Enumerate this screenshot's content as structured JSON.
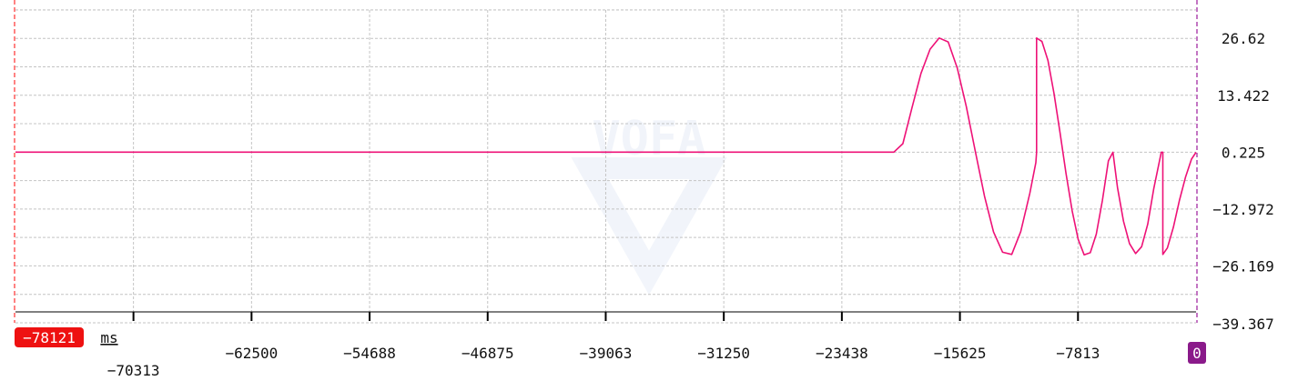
{
  "chart_data": {
    "type": "line",
    "x_unit": "ms",
    "x_range": [
      -78121,
      0
    ],
    "y_range": [
      -39.367,
      33.2
    ],
    "x_ticks": [
      -70313,
      -62500,
      -54688,
      -46875,
      -39063,
      -31250,
      -23438,
      -15625,
      -7813
    ],
    "y_ticks": [
      26.62,
      13.422,
      0.225,
      -12.972,
      -26.169,
      -39.367
    ],
    "x_tick_labels": [
      "−70313",
      "−62500",
      "−54688",
      "−46875",
      "−39063",
      "−31250",
      "−23438",
      "−15625",
      "−7813"
    ],
    "y_tick_labels": [
      "26.62",
      "13.422",
      "0.225",
      "−12.972",
      "−26.169",
      "−39.367"
    ],
    "cursor_left_label": "−78121",
    "cursor_right_label": "0",
    "grid": true,
    "watermark": "VOFA",
    "series": [
      {
        "color": "#ee1177",
        "points": [
          [
            -78121,
            0.23
          ],
          [
            -20000,
            0.23
          ],
          [
            -19400,
            2.2
          ],
          [
            -18800,
            10.5
          ],
          [
            -18200,
            18.5
          ],
          [
            -17600,
            24.1
          ],
          [
            -17000,
            26.7
          ],
          [
            -16400,
            25.8
          ],
          [
            -15800,
            19.7
          ],
          [
            -15200,
            10.8
          ],
          [
            -14600,
            0.3
          ],
          [
            -14000,
            -10.0
          ],
          [
            -13400,
            -18.3
          ],
          [
            -12800,
            -23.0
          ],
          [
            -12200,
            -23.5
          ],
          [
            -11600,
            -18.2
          ],
          [
            -11000,
            -9.3
          ],
          [
            -10600,
            -2.2
          ],
          [
            -10550,
            0.2
          ],
          [
            -10550,
            26.7
          ],
          [
            -10200,
            25.9
          ],
          [
            -9800,
            21.5
          ],
          [
            -9400,
            13.9
          ],
          [
            -9000,
            4.7
          ],
          [
            -8600,
            -4.8
          ],
          [
            -8200,
            -13.4
          ],
          [
            -7800,
            -20.0
          ],
          [
            -7400,
            -23.6
          ],
          [
            -7000,
            -23.1
          ],
          [
            -6600,
            -18.8
          ],
          [
            -6200,
            -11.0
          ],
          [
            -5800,
            -1.8
          ],
          [
            -5500,
            0.2
          ],
          [
            -5200,
            -8.0
          ],
          [
            -4800,
            -15.8
          ],
          [
            -4400,
            -21.0
          ],
          [
            -4000,
            -23.3
          ],
          [
            -3600,
            -21.7
          ],
          [
            -3200,
            -16.5
          ],
          [
            -2800,
            -8.3
          ],
          [
            -2300,
            0.2
          ],
          [
            -2200,
            0.2
          ],
          [
            -2200,
            -23.5
          ],
          [
            -1900,
            -22.0
          ],
          [
            -1500,
            -17.2
          ],
          [
            -1100,
            -11.0
          ],
          [
            -700,
            -5.6
          ],
          [
            -300,
            -1.4
          ],
          [
            0,
            0.2
          ]
        ]
      }
    ]
  }
}
